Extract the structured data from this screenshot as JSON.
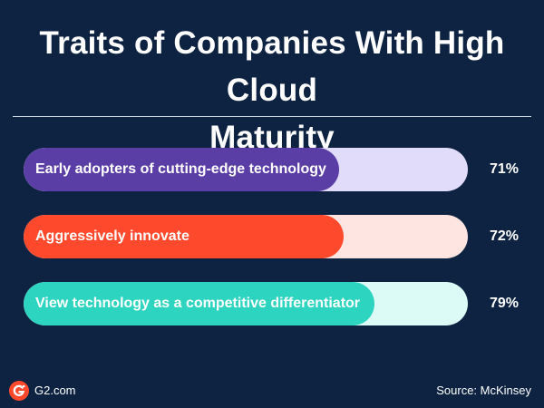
{
  "header": {
    "title_line1": "Traits of Companies With High Cloud",
    "title_line2": "Maturity"
  },
  "chart_data": {
    "type": "bar",
    "orientation": "horizontal",
    "categories": [
      "Early adopters of cutting-edge technology",
      "Aggressively innovate",
      "View technology as a competitive differentiator"
    ],
    "values": [
      71,
      72,
      79
    ],
    "value_labels": [
      "71%",
      "72%",
      "79%"
    ],
    "xlim": [
      0,
      100
    ],
    "grid": false,
    "colors": {
      "fill": [
        "#5b3da6",
        "#ff492c",
        "#2dd4bf"
      ],
      "track": [
        "#e2dcfb",
        "#ffe5e2",
        "#dcfaf6"
      ]
    }
  },
  "footer": {
    "brand": "G2.com",
    "source": "Source: McKinsey"
  },
  "colors": {
    "background": "#0d2341",
    "text": "#ffffff",
    "brand": "#ff492c"
  },
  "icons": {
    "logo": "g2-logo-icon"
  }
}
